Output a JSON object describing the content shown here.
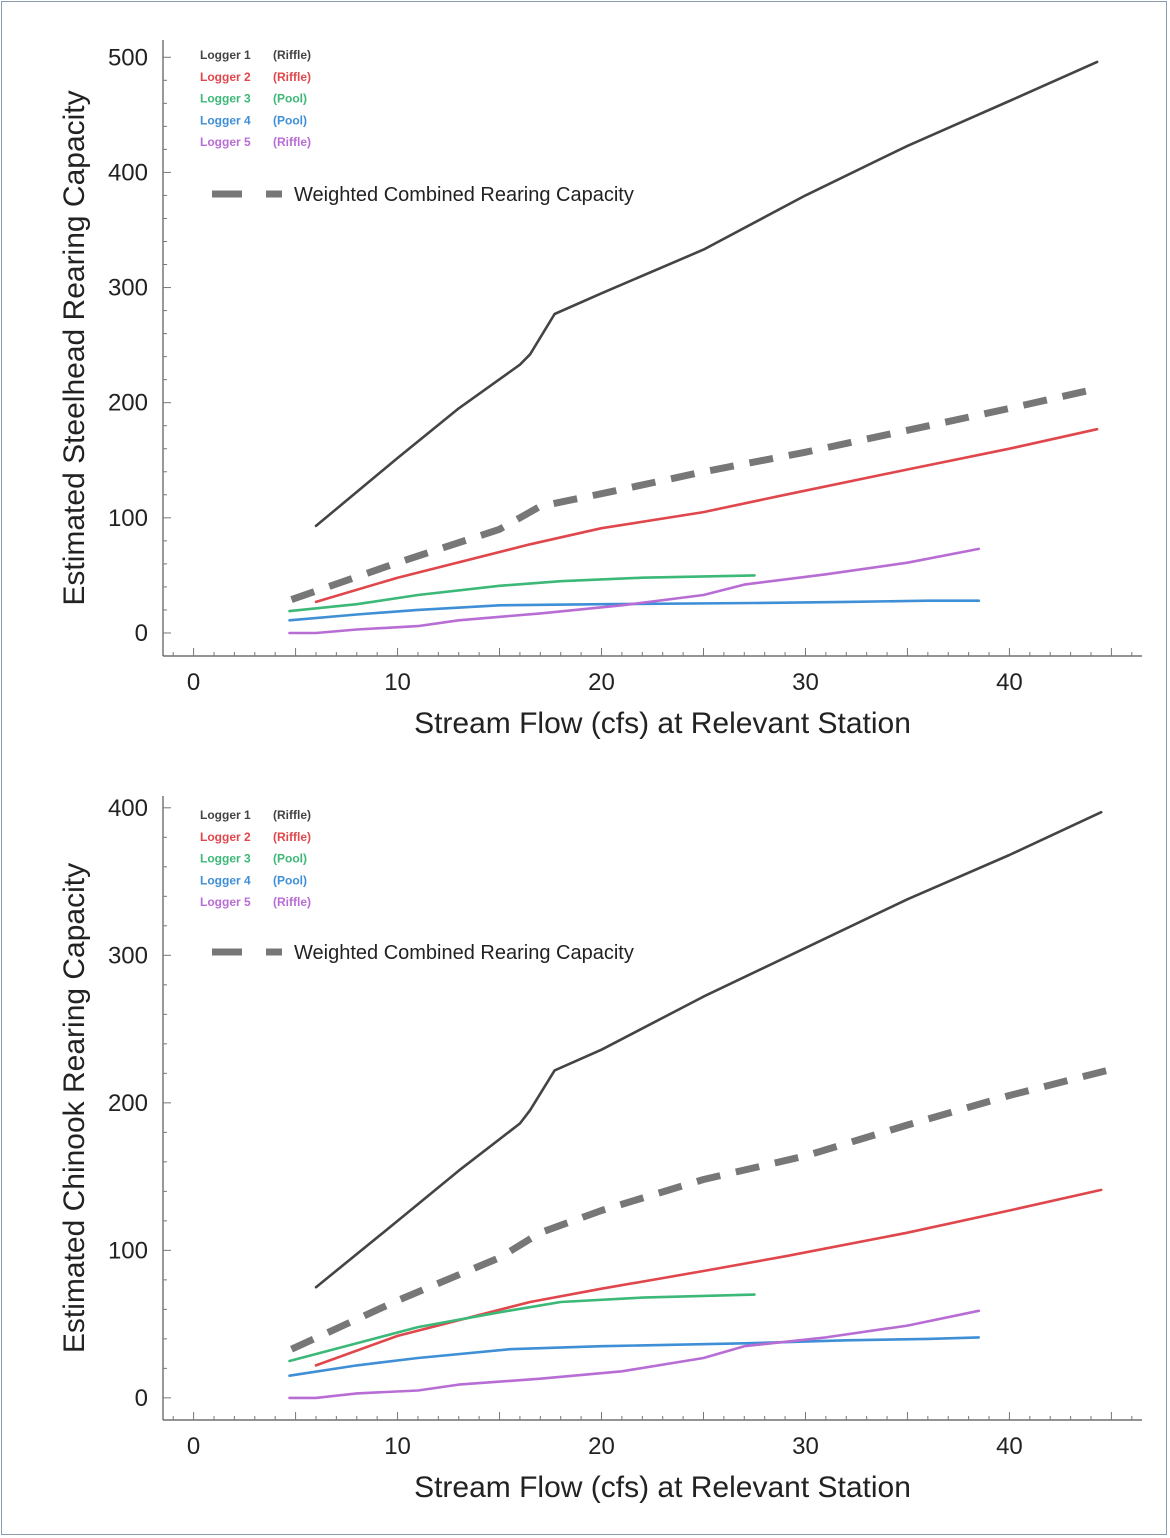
{
  "chart_data": [
    {
      "type": "line",
      "title": "",
      "xlabel": "Stream Flow (cfs) at Relevant Station",
      "ylabel": "Estimated Steelhead Rearing Capacity",
      "xlim": [
        -1.5,
        46.5
      ],
      "ylim": [
        -20,
        515
      ],
      "x_ticks": [
        0,
        10,
        20,
        30,
        40
      ],
      "y_ticks": [
        0,
        100,
        200,
        300,
        400,
        500
      ],
      "grid": false,
      "legend_position": "top-left",
      "series": [
        {
          "name": "Logger 1",
          "habitat": "(Riffle)",
          "color": "#444444",
          "dashed": false,
          "x": [
            6,
            10,
            13,
            16,
            16.5,
            17.7,
            20,
            25,
            30,
            35,
            40,
            44.3
          ],
          "y": [
            93,
            152,
            195,
            233,
            242,
            277,
            295,
            333,
            380,
            423,
            462,
            496
          ]
        },
        {
          "name": "Logger 2",
          "habitat": "(Riffle)",
          "color": "#e0474c",
          "dashed": false,
          "x": [
            6,
            10,
            16.5,
            20,
            25,
            29,
            35,
            40,
            44.3
          ],
          "y": [
            27,
            48,
            77,
            91,
            105,
            120,
            142,
            160,
            177
          ]
        },
        {
          "name": "Logger 3",
          "habitat": "(Pool)",
          "color": "#3cb878",
          "dashed": false,
          "x": [
            4.7,
            8,
            11,
            15,
            18,
            22,
            27.5
          ],
          "y": [
            19,
            25,
            33,
            41,
            45,
            48,
            50
          ]
        },
        {
          "name": "Logger 4",
          "habitat": "(Pool)",
          "color": "#3f8fd6",
          "dashed": false,
          "x": [
            4.7,
            8,
            11,
            15,
            20,
            27.5,
            32,
            36,
            38.5
          ],
          "y": [
            11,
            16,
            20,
            24,
            25,
            26,
            27,
            28,
            28
          ]
        },
        {
          "name": "Logger 5",
          "habitat": "(Riffle)",
          "color": "#b86dd4",
          "dashed": false,
          "x": [
            4.7,
            6,
            8,
            11,
            13,
            17,
            21,
            25,
            27,
            31,
            35,
            38.5
          ],
          "y": [
            0,
            0,
            3,
            6,
            11,
            17,
            24,
            33,
            42,
            51,
            61,
            73
          ]
        },
        {
          "name": "Weighted Combined Rearing Capacity",
          "color": "#777777",
          "dashed": true,
          "x": [
            4.8,
            10,
            15,
            17,
            20,
            25,
            30,
            35,
            40,
            44.5
          ],
          "y": [
            29,
            61,
            90,
            110,
            121,
            140,
            157,
            176,
            195,
            213
          ]
        }
      ]
    },
    {
      "type": "line",
      "title": "",
      "xlabel": "Stream Flow (cfs) at Relevant Station",
      "ylabel": "Estimated Chinook Rearing Capacity",
      "xlim": [
        -1.5,
        46.5
      ],
      "ylim": [
        -15,
        408
      ],
      "x_ticks": [
        0,
        10,
        20,
        30,
        40
      ],
      "y_ticks": [
        0,
        100,
        200,
        300,
        400
      ],
      "grid": false,
      "legend_position": "top-left",
      "series": [
        {
          "name": "Logger 1",
          "habitat": "(Riffle)",
          "color": "#444444",
          "dashed": false,
          "x": [
            6,
            10,
            13,
            16,
            16.5,
            17.7,
            20,
            25,
            30,
            35,
            40,
            44.5
          ],
          "y": [
            75,
            120,
            154,
            186,
            195,
            222,
            236,
            272,
            305,
            338,
            368,
            397
          ]
        },
        {
          "name": "Logger 2",
          "habitat": "(Riffle)",
          "color": "#e0474c",
          "dashed": false,
          "x": [
            6,
            10,
            16.5,
            20,
            25,
            29,
            35,
            40,
            44.5
          ],
          "y": [
            22,
            42,
            65,
            74,
            86,
            96,
            112,
            127,
            141
          ]
        },
        {
          "name": "Logger 3",
          "habitat": "(Pool)",
          "color": "#3cb878",
          "dashed": false,
          "x": [
            4.7,
            8,
            11,
            15,
            18,
            22,
            27.5
          ],
          "y": [
            25,
            37,
            48,
            58,
            65,
            68,
            70
          ]
        },
        {
          "name": "Logger 4",
          "habitat": "(Pool)",
          "color": "#3f8fd6",
          "dashed": false,
          "x": [
            4.7,
            8,
            11,
            15.5,
            20,
            27,
            32,
            36,
            38.5
          ],
          "y": [
            15,
            22,
            27,
            33,
            35,
            37,
            39,
            40,
            41
          ]
        },
        {
          "name": "Logger 5",
          "habitat": "(Riffle)",
          "color": "#b86dd4",
          "dashed": false,
          "x": [
            4.7,
            6,
            8,
            11,
            13,
            17,
            21,
            25,
            27,
            31,
            35,
            38.5
          ],
          "y": [
            0,
            0,
            3,
            5,
            9,
            13,
            18,
            27,
            35,
            41,
            49,
            59
          ]
        },
        {
          "name": "Weighted Combined Rearing Capacity",
          "color": "#777777",
          "dashed": true,
          "x": [
            4.8,
            10,
            15,
            17,
            20,
            25,
            30,
            35,
            40,
            44.8
          ],
          "y": [
            33,
            66,
            95,
            112,
            127,
            148,
            164,
            185,
            205,
            222
          ]
        }
      ]
    }
  ]
}
